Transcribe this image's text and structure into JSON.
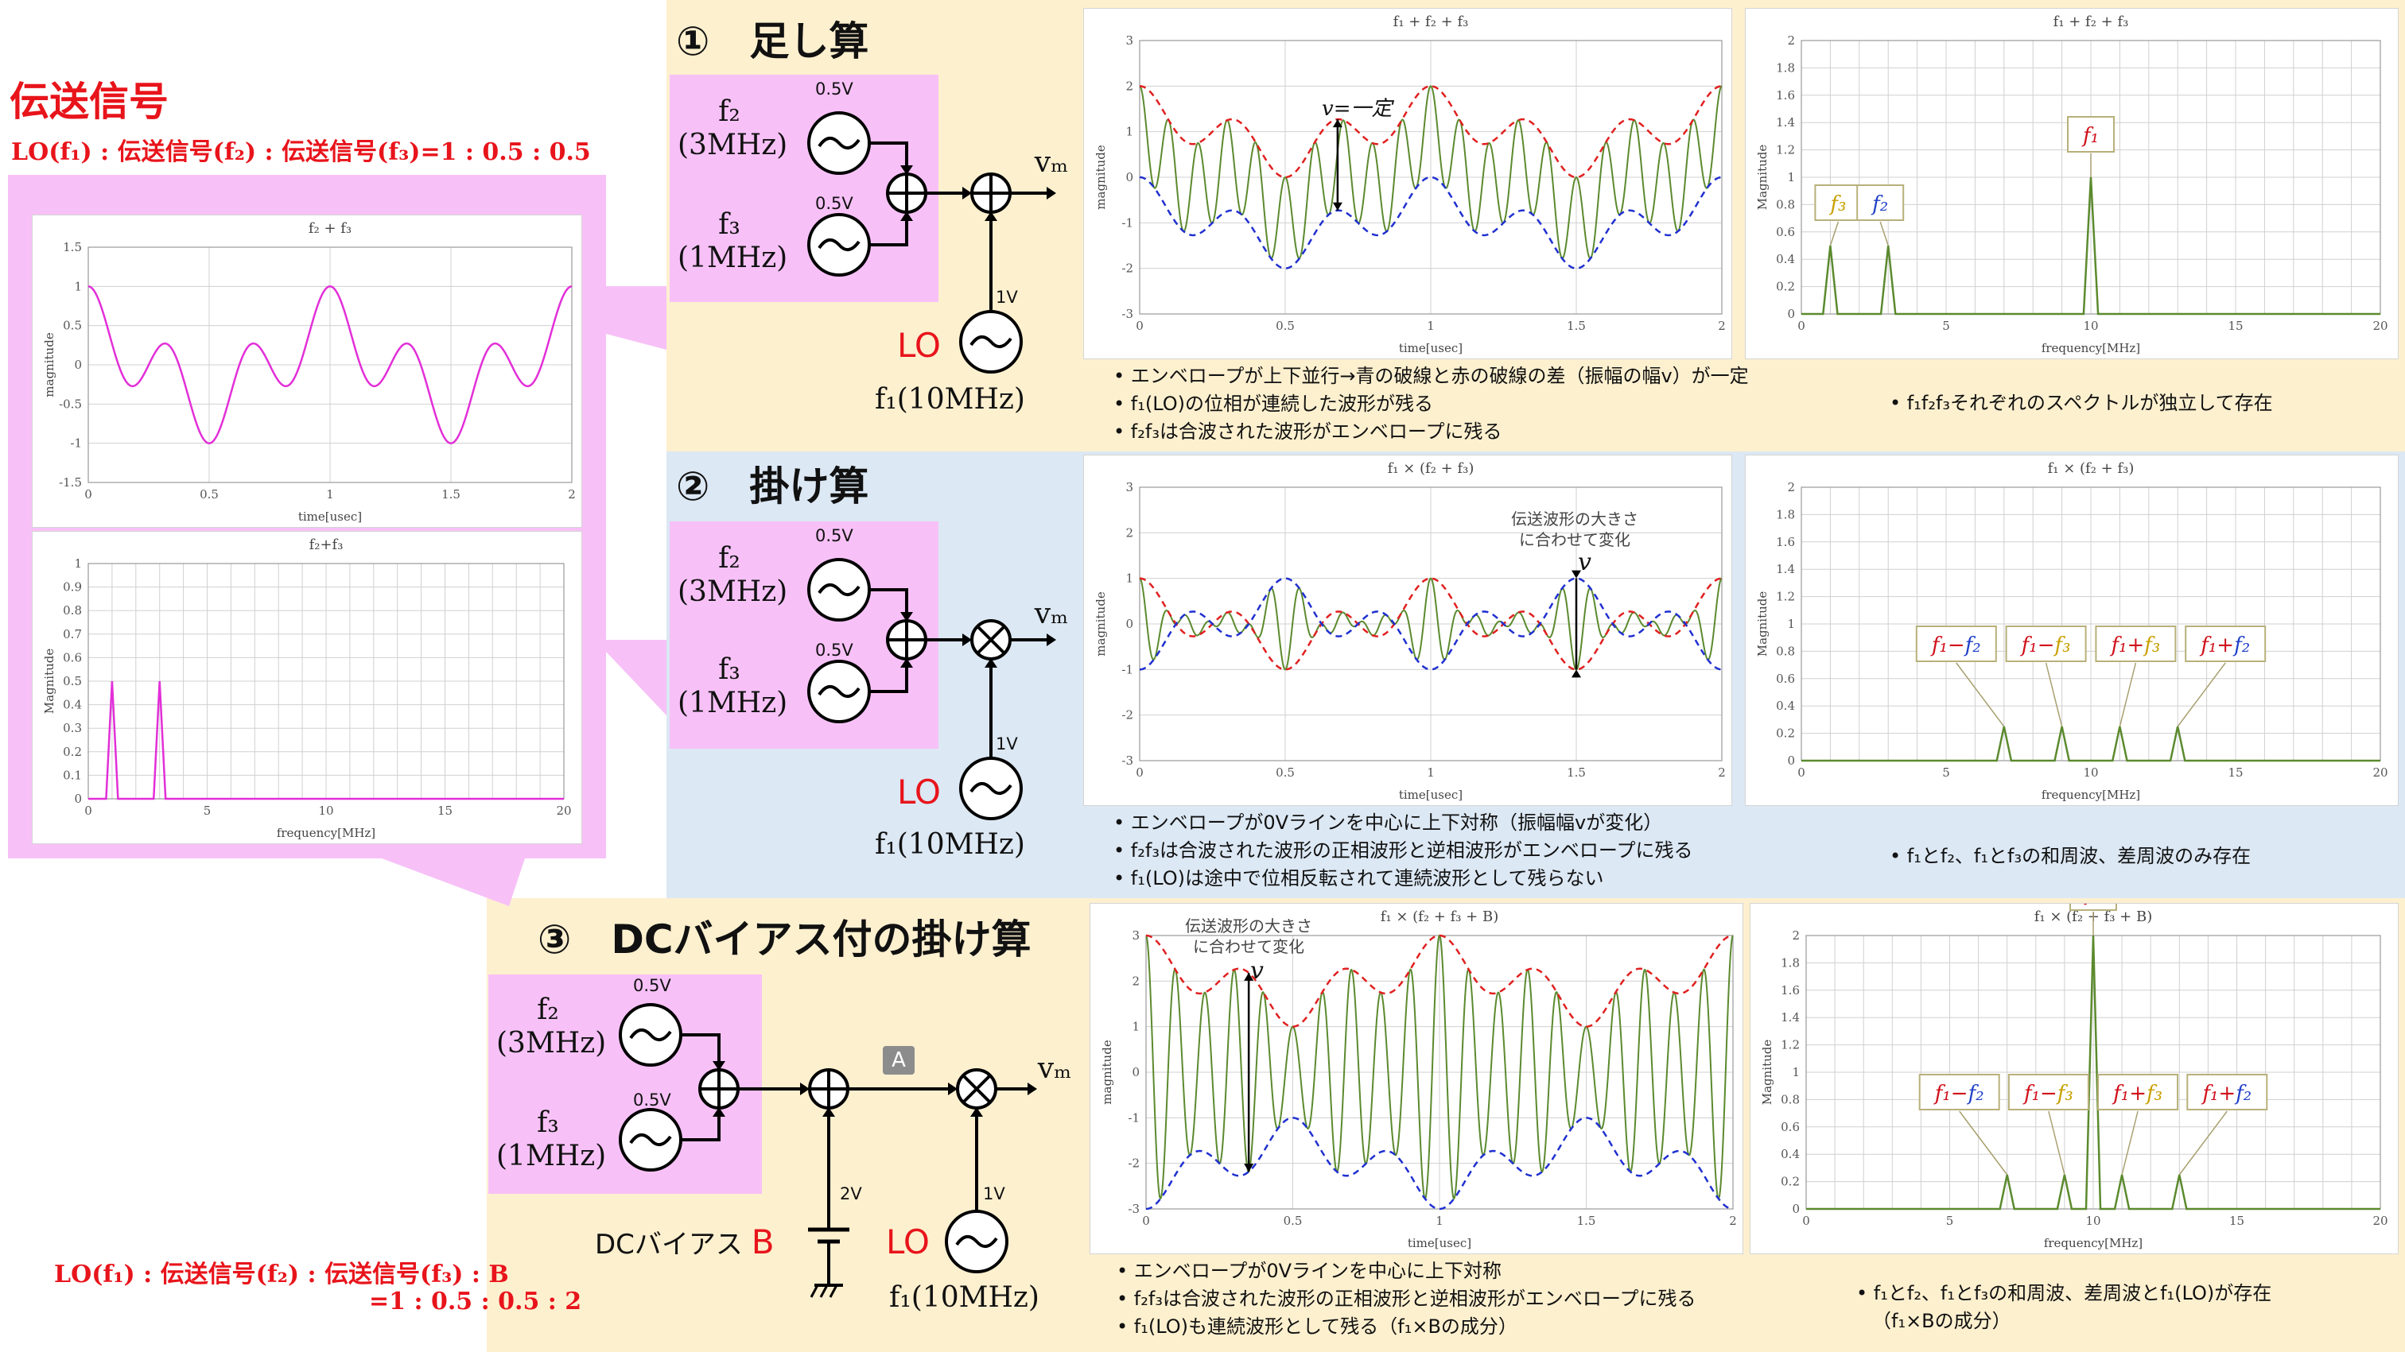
{
  "left_panel": {
    "title": "伝送信号",
    "ratio_top": "LO(f₁) : 伝送信号(f₂) : 伝送信号(f₃)=1 : 0.5 : 0.5",
    "ratio_bottom_line1": "LO(f₁) : 伝送信号(f₂) : 伝送信号(f₃) : B",
    "ratio_bottom_line2": "=1 : 0.5 : 0.5 : 2"
  },
  "sections": [
    {
      "title": "①　足し算",
      "f2": "f₂",
      "f2_freq": "(3MHz)",
      "f3": "f₃",
      "f3_freq": "(1MHz)",
      "v_f2": "0.5V",
      "v_f3": "0.5V",
      "v_lo": "1V",
      "lo": "LO",
      "f1": "f₁(10MHz)",
      "out": "vₘ",
      "op_final": "+",
      "notes": [
        "エンベロープが上下並行→青の破線と赤の破線の差（振幅の幅v）が一定",
        "f₁(LO)の位相が連続した波形が残る",
        "f₂f₃は合波された波形がエンベロープに残る"
      ],
      "spectrum_note": [
        "f₁f₂f₃それぞれのスペクトルが独立して存在"
      ],
      "time_annotation": "v=一定"
    },
    {
      "title": "②　掛け算",
      "f2": "f₂",
      "f2_freq": "(3MHz)",
      "f3": "f₃",
      "f3_freq": "(1MHz)",
      "v_f2": "0.5V",
      "v_f3": "0.5V",
      "v_lo": "1V",
      "lo": "LO",
      "f1": "f₁(10MHz)",
      "out": "vₘ",
      "op_final": "×",
      "notes": [
        "エンベロープが0Vラインを中心に上下対称（振幅幅vが変化）",
        "f₂f₃は合波された波形の正相波形と逆相波形がエンベロープに残る",
        "f₁(LO)は途中で位相反転されて連続波形として残らない"
      ],
      "spectrum_note": [
        "f₁とf₂、f₁とf₃の和周波、差周波のみ存在"
      ],
      "time_annotation_1": "伝送波形の大きさ",
      "time_annotation_2": "に合わせて変化",
      "time_annotation_v": "v"
    },
    {
      "title": "③　DCバイアス付の掛け算",
      "f2": "f₂",
      "f2_freq": "(3MHz)",
      "f3": "f₃",
      "f3_freq": "(1MHz)",
      "v_f2": "0.5V",
      "v_f3": "0.5V",
      "v_lo": "1V",
      "v_bias": "2V",
      "lo": "LO",
      "f1": "f₁(10MHz)",
      "out": "vₘ",
      "bias_label": "DCバイアス",
      "bias_letter": "B",
      "node_marker": "A",
      "notes": [
        "エンベロープが0Vラインを中心に上下対称",
        "f₂f₃は合波された波形の正相波形と逆相波形がエンベロープに残る",
        "f₁(LO)も連続波形として残る（f₁×Bの成分）"
      ],
      "spectrum_note": [
        "f₁とf₂、f₁とf₃の和周波、差周波とf₁(LO)が存在",
        "（f₁×Bの成分）"
      ],
      "time_annotation_1": "伝送波形の大きさ",
      "time_annotation_2": "に合わせて変化",
      "time_annotation_v": "v"
    }
  ],
  "colors": {
    "yellow_band": "#fdf0cf",
    "blue_band": "#dce8f4",
    "pink": "#f7c1f7",
    "magenta_trace": "#e22fd8",
    "green_trace": "#5b8a2e",
    "red_envelope": "#e02020",
    "blue_envelope": "#2030d0",
    "label_red": "#e8141b"
  },
  "chart_data": [
    {
      "id": "left-time",
      "type": "line",
      "title": "f₂ + f₃",
      "xlabel": "time[usec]",
      "ylabel": "magnitude",
      "xlim": [
        0,
        2
      ],
      "ylim": [
        -1.5,
        1.5
      ],
      "xticks": [
        "0",
        "0.5",
        "1",
        "1.5",
        "2"
      ],
      "yticks": [
        "-1.5",
        "-1",
        "-0.5",
        "0",
        "0.5",
        "1",
        "1.5"
      ],
      "series": [
        {
          "formula": "0.5*cos(2π·3t)+0.5*cos(2π·1t)",
          "color": "#e22fd8"
        }
      ]
    },
    {
      "id": "left-freq",
      "type": "line",
      "title": "f₂+f₃",
      "xlabel": "frequency[MHz]",
      "ylabel": "Magnitude",
      "xlim": [
        0,
        20
      ],
      "ylim": [
        0,
        1
      ],
      "xticks": [
        "0",
        "5",
        "10",
        "15",
        "20"
      ],
      "yticks": [
        "0",
        "0.1",
        "0.2",
        "0.3",
        "0.4",
        "0.5",
        "0.6",
        "0.7",
        "0.8",
        "0.9",
        "1"
      ],
      "peaks": [
        {
          "x": 1,
          "y": 0.5
        },
        {
          "x": 3,
          "y": 0.5
        }
      ],
      "color": "#e22fd8"
    },
    {
      "id": "add-time",
      "type": "line",
      "title": "f₁ + f₂ + f₃",
      "xlabel": "time[usec]",
      "ylabel": "magnitude",
      "xlim": [
        0,
        2
      ],
      "ylim": [
        -3,
        3
      ],
      "xticks": [
        "0",
        "0.5",
        "1",
        "1.5",
        "2"
      ],
      "yticks": [
        "-3",
        "-2",
        "-1",
        "0",
        "1",
        "2",
        "3"
      ]
    },
    {
      "id": "add-freq",
      "type": "line",
      "title": "f₁ + f₂ + f₃",
      "xlabel": "frequency[MHz]",
      "ylabel": "Magnitude",
      "xlim": [
        0,
        20
      ],
      "ylim": [
        0,
        2
      ],
      "xticks": [
        "0",
        "5",
        "10",
        "15",
        "20"
      ],
      "yticks": [
        "0",
        "0.2",
        "0.4",
        "0.6",
        "0.8",
        "1",
        "1.2",
        "1.4",
        "1.6",
        "1.8",
        "2"
      ],
      "peaks": [
        {
          "x": 1,
          "y": 0.5,
          "label": "f₃"
        },
        {
          "x": 3,
          "y": 0.5,
          "label": "f₂"
        },
        {
          "x": 10,
          "y": 1,
          "label": "f₁"
        }
      ]
    },
    {
      "id": "mul-time",
      "type": "line",
      "title": "f₁ × (f₂ + f₃)",
      "xlabel": "time[usec]",
      "ylabel": "magnitude",
      "xlim": [
        0,
        2
      ],
      "ylim": [
        -3,
        3
      ],
      "xticks": [
        "0",
        "0.5",
        "1",
        "1.5",
        "2"
      ],
      "yticks": [
        "-3",
        "-2",
        "-1",
        "0",
        "1",
        "2",
        "3"
      ]
    },
    {
      "id": "mul-freq",
      "type": "line",
      "title": "f₁ × (f₂ + f₃)",
      "xlabel": "frequency[MHz]",
      "ylabel": "Magnitude",
      "xlim": [
        0,
        20
      ],
      "ylim": [
        0,
        2
      ],
      "xticks": [
        "0",
        "5",
        "10",
        "15",
        "20"
      ],
      "yticks": [
        "0",
        "0.2",
        "0.4",
        "0.6",
        "0.8",
        "1",
        "1.2",
        "1.4",
        "1.6",
        "1.8",
        "2"
      ],
      "peaks": [
        {
          "x": 7,
          "y": 0.25,
          "label": "f₁−f₂"
        },
        {
          "x": 9,
          "y": 0.25,
          "label": "f₁−f₃"
        },
        {
          "x": 11,
          "y": 0.25,
          "label": "f₁+f₃"
        },
        {
          "x": 13,
          "y": 0.25,
          "label": "f₁+f₂"
        }
      ]
    },
    {
      "id": "bias-time",
      "type": "line",
      "title": "f₁ × (f₂ + f₃ + B)",
      "xlabel": "time[usec]",
      "ylabel": "magnitude",
      "xlim": [
        0,
        2
      ],
      "ylim": [
        -3,
        3
      ],
      "xticks": [
        "0",
        "0.5",
        "1",
        "1.5",
        "2"
      ],
      "yticks": [
        "-3",
        "-2",
        "-1",
        "0",
        "1",
        "2",
        "3"
      ]
    },
    {
      "id": "bias-freq",
      "type": "line",
      "title": "f₁ × (f₂ + f₃ + B)",
      "xlabel": "frequency[MHz]",
      "ylabel": "Magnitude",
      "xlim": [
        0,
        20
      ],
      "ylim": [
        0,
        2
      ],
      "xticks": [
        "0",
        "5",
        "10",
        "15",
        "20"
      ],
      "yticks": [
        "0",
        "0.2",
        "0.4",
        "0.6",
        "0.8",
        "1",
        "1.2",
        "1.4",
        "1.6",
        "1.8",
        "2"
      ],
      "peaks": [
        {
          "x": 7,
          "y": 0.25,
          "label": "f₁−f₂"
        },
        {
          "x": 9,
          "y": 0.25,
          "label": "f₁−f₃"
        },
        {
          "x": 10,
          "y": 2,
          "label": "f₁"
        },
        {
          "x": 11,
          "y": 0.25,
          "label": "f₁+f₃"
        },
        {
          "x": 13,
          "y": 0.25,
          "label": "f₁+f₂"
        }
      ]
    }
  ]
}
